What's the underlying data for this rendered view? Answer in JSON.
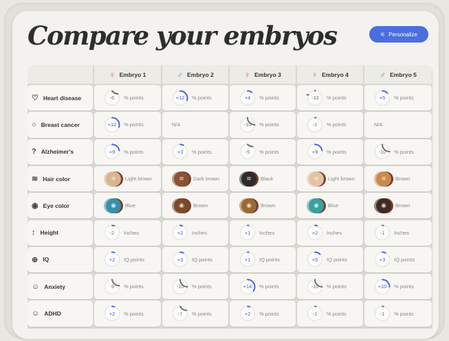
{
  "title": "Compare your embryos",
  "personalize": {
    "label": "Personalize",
    "icon": "sliders-icon"
  },
  "colors": {
    "accent": "#4a6ee0",
    "positive": "#4a63e0",
    "negative": "#6e6e6e",
    "female": "#e0559a",
    "male": "#4a9ad8"
  },
  "embryos": [
    {
      "name": "Embryo 1",
      "sex": "female",
      "symbol": "♀"
    },
    {
      "name": "Embryo 2",
      "sex": "male",
      "symbol": "♂"
    },
    {
      "name": "Embryo 3",
      "sex": "female",
      "symbol": "♀"
    },
    {
      "name": "Embryo 4",
      "sex": "female",
      "symbol": "♀"
    },
    {
      "name": "Embryo 5",
      "sex": "male",
      "symbol": "♂"
    }
  ],
  "rows": [
    {
      "label": "Heart disease",
      "icon": "heart-pulse-icon",
      "glyph": "♡",
      "cells": [
        {
          "type": "score",
          "value": "-6",
          "unit": "% points"
        },
        {
          "type": "score",
          "value": "+12",
          "unit": "% points"
        },
        {
          "type": "score",
          "value": "+4",
          "unit": "% points"
        },
        {
          "type": "score",
          "value": "-33",
          "unit": "% points"
        },
        {
          "type": "score",
          "value": "+5",
          "unit": "% points"
        }
      ]
    },
    {
      "label": "Breast cancer",
      "icon": "breast-icon",
      "glyph": "○",
      "cells": [
        {
          "type": "score",
          "value": "+12",
          "unit": "% points"
        },
        {
          "type": "na",
          "value": "N/A"
        },
        {
          "type": "score",
          "value": "-10",
          "unit": "% points"
        },
        {
          "type": "score",
          "value": "-1",
          "unit": "% points"
        },
        {
          "type": "na",
          "value": "N/A"
        }
      ]
    },
    {
      "label": "Alzheimer's",
      "icon": "head-question-icon",
      "glyph": "?",
      "cells": [
        {
          "type": "score",
          "value": "+9",
          "unit": "% points"
        },
        {
          "type": "score",
          "value": "+3",
          "unit": "% points"
        },
        {
          "type": "score",
          "value": "-5",
          "unit": "% points"
        },
        {
          "type": "score",
          "value": "+9",
          "unit": "% points"
        },
        {
          "type": "score",
          "value": "-10",
          "unit": "% points"
        }
      ]
    },
    {
      "label": "Hair color",
      "icon": "waves-icon",
      "glyph": "≋",
      "cells": [
        {
          "type": "swatch",
          "value": "Light brown",
          "color": "#d9b58f"
        },
        {
          "type": "swatch",
          "value": "Dark brown",
          "color": "#8a5234"
        },
        {
          "type": "swatch",
          "value": "Black",
          "color": "#2f2b2a"
        },
        {
          "type": "swatch",
          "value": "Light brown",
          "color": "#e2c4a0"
        },
        {
          "type": "swatch",
          "value": "Brown",
          "color": "#c98a4e"
        }
      ]
    },
    {
      "label": "Eye color",
      "icon": "eye-icon",
      "glyph": "◉",
      "cells": [
        {
          "type": "swatch",
          "value": "Blue",
          "color": "#3a8fa8"
        },
        {
          "type": "swatch",
          "value": "Brown",
          "color": "#7a4a2c"
        },
        {
          "type": "swatch",
          "value": "Brown",
          "color": "#9a6a34"
        },
        {
          "type": "swatch",
          "value": "Blue",
          "color": "#3aa0a0"
        },
        {
          "type": "swatch",
          "value": "Brown",
          "color": "#3f2a24"
        }
      ]
    },
    {
      "label": "Height",
      "icon": "height-icon",
      "glyph": "↕",
      "cells": [
        {
          "type": "score",
          "value": "-2",
          "unit": "Inches"
        },
        {
          "type": "score",
          "value": "+2",
          "unit": "Inches"
        },
        {
          "type": "score",
          "value": "+1",
          "unit": "Inches"
        },
        {
          "type": "score",
          "value": "+2",
          "unit": "Inches"
        },
        {
          "type": "score",
          "value": "-1",
          "unit": "Inches"
        }
      ]
    },
    {
      "label": "IQ",
      "icon": "brain-icon",
      "glyph": "⊕",
      "cells": [
        {
          "type": "score",
          "value": "+2",
          "unit": "IQ points"
        },
        {
          "type": "score",
          "value": "+3",
          "unit": "IQ points"
        },
        {
          "type": "score",
          "value": "+1",
          "unit": "IQ points"
        },
        {
          "type": "score",
          "value": "+5",
          "unit": "IQ points"
        },
        {
          "type": "score",
          "value": "+3",
          "unit": "IQ points"
        }
      ]
    },
    {
      "label": "Anxiety",
      "icon": "head-icon",
      "glyph": "☺",
      "cells": [
        {
          "type": "score",
          "value": "-9",
          "unit": "% points"
        },
        {
          "type": "score",
          "value": "-10",
          "unit": "% points"
        },
        {
          "type": "score",
          "value": "+14",
          "unit": "% points"
        },
        {
          "type": "score",
          "value": "-10",
          "unit": "% points"
        },
        {
          "type": "score",
          "value": "+10",
          "unit": "% points"
        }
      ]
    },
    {
      "label": "ADHD",
      "icon": "head-icon",
      "glyph": "☺",
      "cells": [
        {
          "type": "score",
          "value": "+2",
          "unit": "% points"
        },
        {
          "type": "score",
          "value": "-7",
          "unit": "% points"
        },
        {
          "type": "score",
          "value": "+2",
          "unit": "% points"
        },
        {
          "type": "score",
          "value": "-1",
          "unit": "% points"
        },
        {
          "type": "score",
          "value": "-1",
          "unit": "% points"
        }
      ]
    }
  ]
}
